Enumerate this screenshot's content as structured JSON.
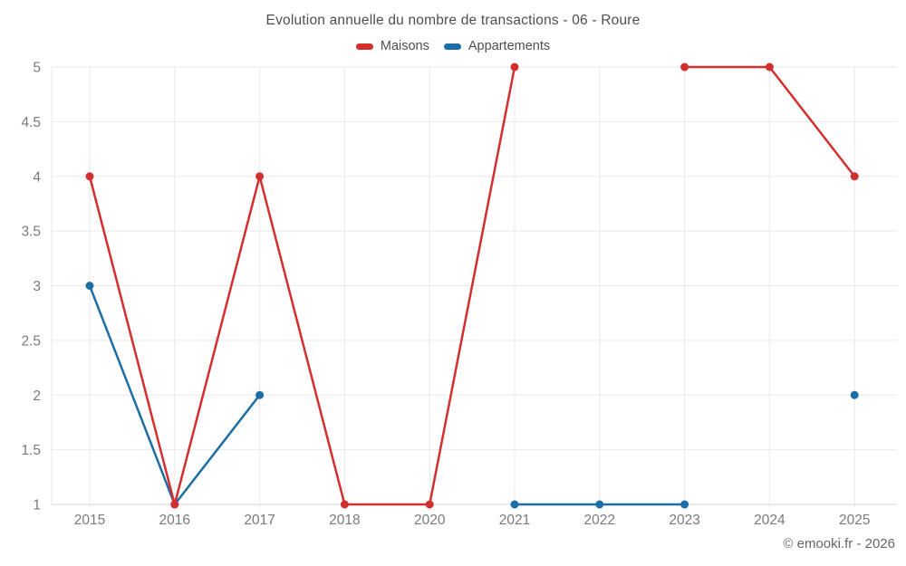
{
  "title": "Evolution annuelle du nombre de transactions - 06 - Roure",
  "footer": "© emooki.fr - 2026",
  "colors": {
    "maisons": "#d32f2f",
    "appartements": "#1c6ea4",
    "grid": "#e9e9e9",
    "axis_line": "#d6d6d6",
    "title_text": "#4f4f4f",
    "tick_text": "#7a7a7a",
    "footer_text": "#666666"
  },
  "chart_data": {
    "type": "line",
    "title": "Evolution annuelle du nombre de transactions - 06 - Roure",
    "categories": [
      "2015",
      "2016",
      "2017",
      "2018",
      "2020",
      "2021",
      "2022",
      "2023",
      "2024",
      "2025"
    ],
    "series": [
      {
        "name": "Maisons",
        "color": "#d32f2f",
        "values": [
          4,
          1,
          4,
          1,
          1,
          5,
          null,
          5,
          5,
          4
        ]
      },
      {
        "name": "Appartements",
        "color": "#1c6ea4",
        "values": [
          3,
          1,
          2,
          null,
          null,
          1,
          1,
          1,
          null,
          2
        ]
      }
    ],
    "xlabel": "",
    "ylabel": "",
    "ylim": [
      1,
      5
    ],
    "ytick_step": 0.5,
    "yticks": [
      "1",
      "1.5",
      "2",
      "2.5",
      "3",
      "3.5",
      "4",
      "4.5",
      "5"
    ],
    "grid": true,
    "legend_position": "top",
    "annotations": []
  }
}
